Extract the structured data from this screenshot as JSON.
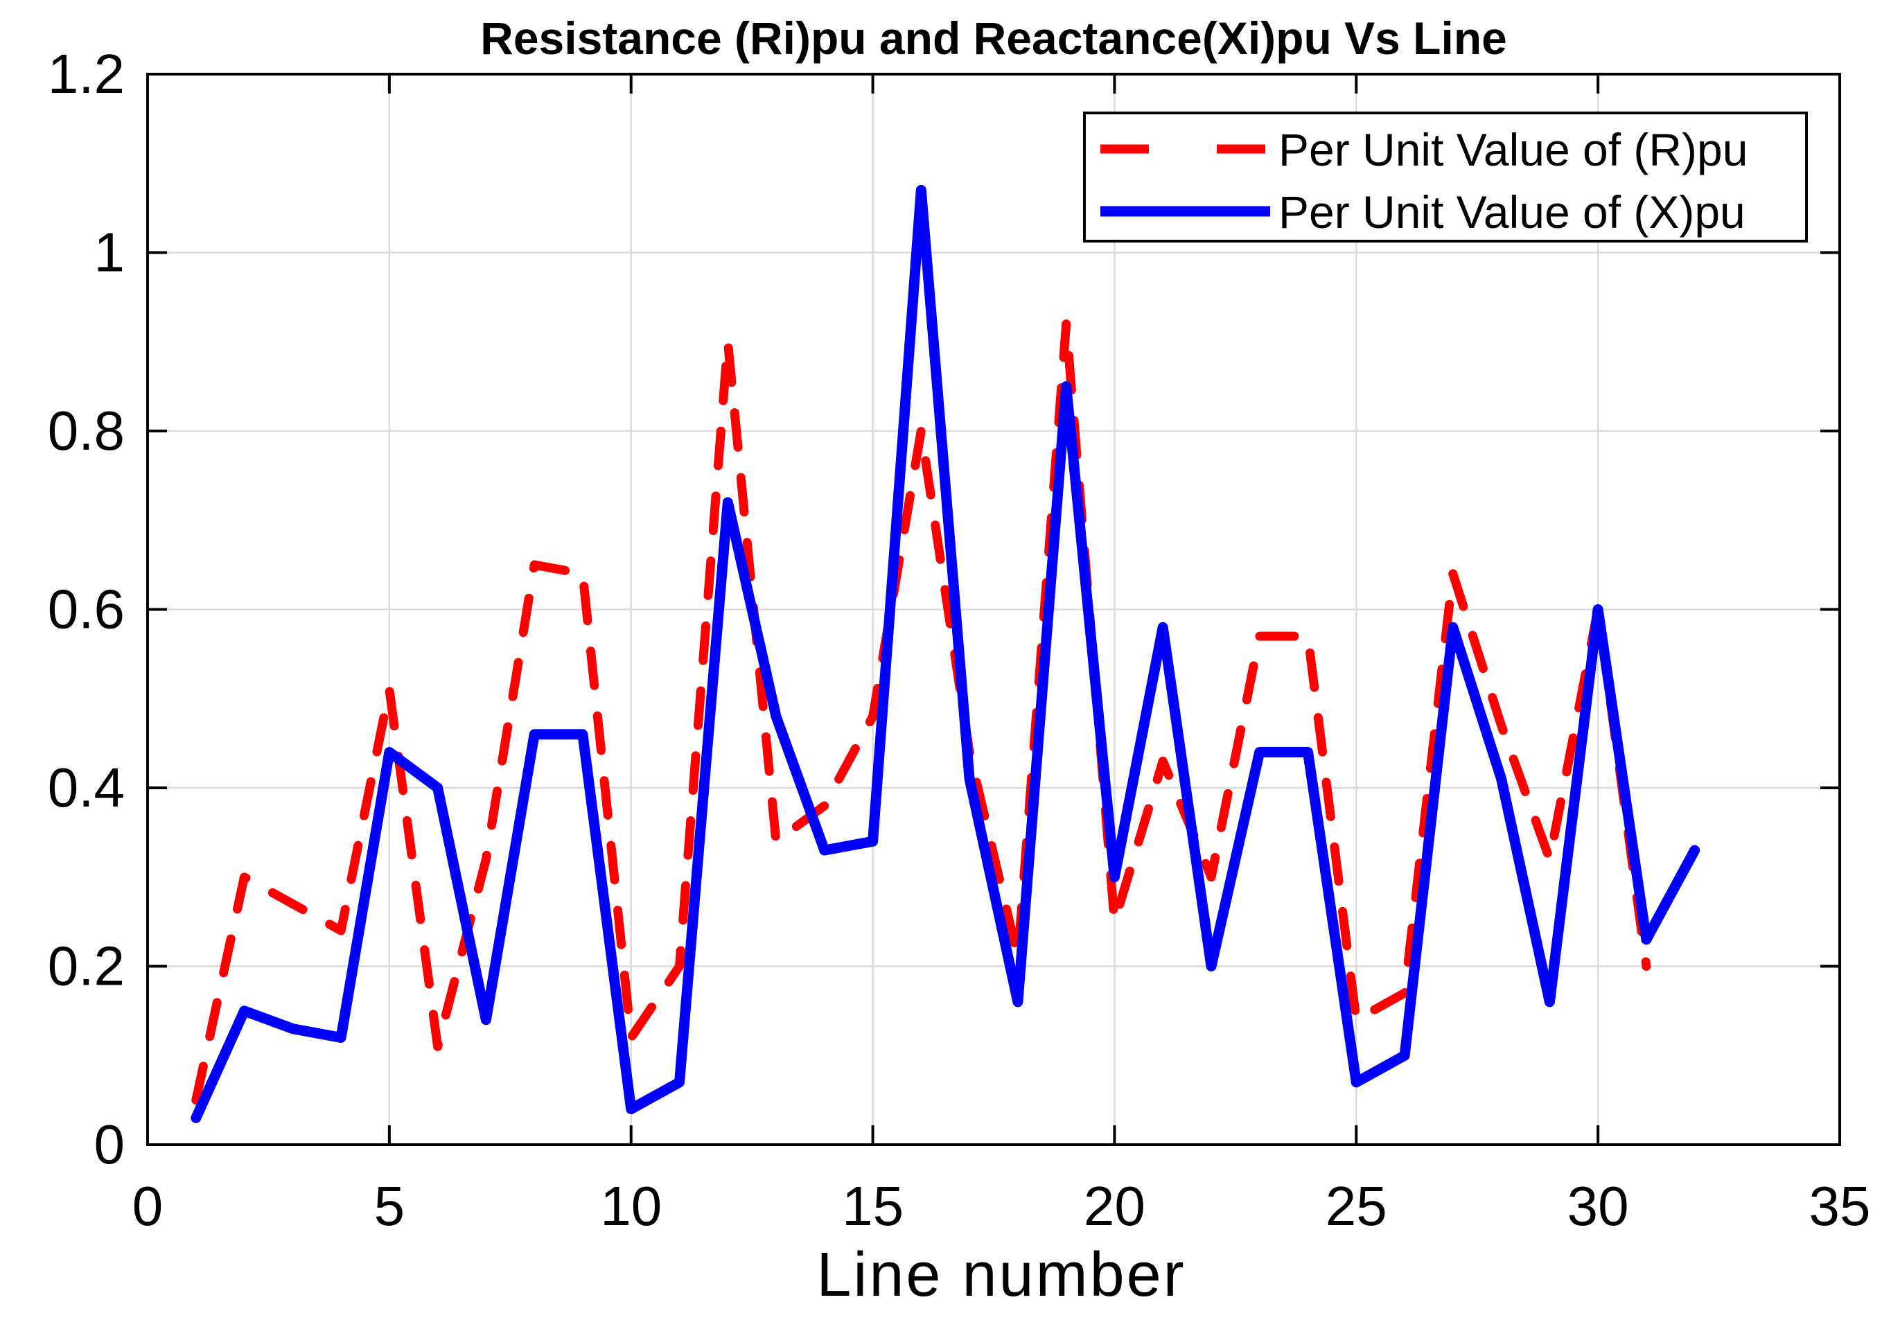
{
  "title": "Resistance (Ri)pu and Reactance(Xi)pu Vs Line",
  "xlabel": "Line number",
  "legend": {
    "position": "top-right",
    "entries": [
      {
        "label": "Per Unit Value of (R)pu",
        "color": "#ff0000",
        "style": "dashed"
      },
      {
        "label": "Per Unit Value of (X)pu",
        "color": "#0000ff",
        "style": "solid"
      }
    ]
  },
  "colors": {
    "resistance_line": "#ff0000",
    "reactance_line": "#0000ff",
    "gridline": "#dbdbdb",
    "axis_frame": "#000000",
    "background": "#ffffff"
  },
  "chart_data": {
    "type": "line",
    "title": "Resistance (Ri)pu and Reactance(Xi)pu Vs Line",
    "xlabel": "Line number",
    "ylabel": "",
    "xlim": [
      0,
      35
    ],
    "ylim": [
      0,
      1.2
    ],
    "xticks": [
      0,
      5,
      10,
      15,
      20,
      25,
      30,
      35
    ],
    "xtick_labels": [
      "0",
      "5",
      "10",
      "15",
      "20",
      "25",
      "30",
      "35"
    ],
    "yticks": [
      0,
      0.2,
      0.4,
      0.6,
      0.8,
      1.0,
      1.2
    ],
    "ytick_labels": [
      "0",
      "0.2",
      "0.4",
      "0.6",
      "0.8",
      "1",
      "1.2"
    ],
    "grid": true,
    "legend_position": "top-right",
    "series": [
      {
        "name": "Per Unit Value of (R)pu",
        "color": "#ff0000",
        "style": "dashed",
        "x": [
          1,
          2,
          3,
          4,
          5,
          6,
          7,
          8,
          9,
          10,
          11,
          12,
          13,
          14,
          15,
          16,
          17,
          18,
          19,
          20,
          21,
          22,
          23,
          24,
          25,
          26,
          27,
          28,
          29,
          30,
          31
        ],
        "values": [
          0.05,
          0.3,
          0.27,
          0.24,
          0.51,
          0.11,
          0.32,
          0.65,
          0.64,
          0.12,
          0.2,
          0.9,
          0.34,
          0.38,
          0.48,
          0.8,
          0.44,
          0.21,
          0.92,
          0.25,
          0.43,
          0.3,
          0.57,
          0.57,
          0.14,
          0.17,
          0.64,
          0.47,
          0.32,
          0.6,
          0.2
        ]
      },
      {
        "name": "Per Unit Value of (X)pu",
        "color": "#0000ff",
        "style": "solid",
        "x": [
          1,
          2,
          3,
          4,
          5,
          6,
          7,
          8,
          9,
          10,
          11,
          12,
          13,
          14,
          15,
          16,
          17,
          18,
          19,
          20,
          21,
          22,
          23,
          24,
          25,
          26,
          27,
          28,
          29,
          30,
          31,
          32
        ],
        "values": [
          0.03,
          0.15,
          0.13,
          0.12,
          0.44,
          0.4,
          0.14,
          0.46,
          0.46,
          0.04,
          0.07,
          0.72,
          0.48,
          0.33,
          0.34,
          1.07,
          0.41,
          0.16,
          0.85,
          0.3,
          0.58,
          0.2,
          0.44,
          0.44,
          0.07,
          0.1,
          0.58,
          0.41,
          0.16,
          0.6,
          0.23,
          0.33
        ]
      }
    ]
  }
}
